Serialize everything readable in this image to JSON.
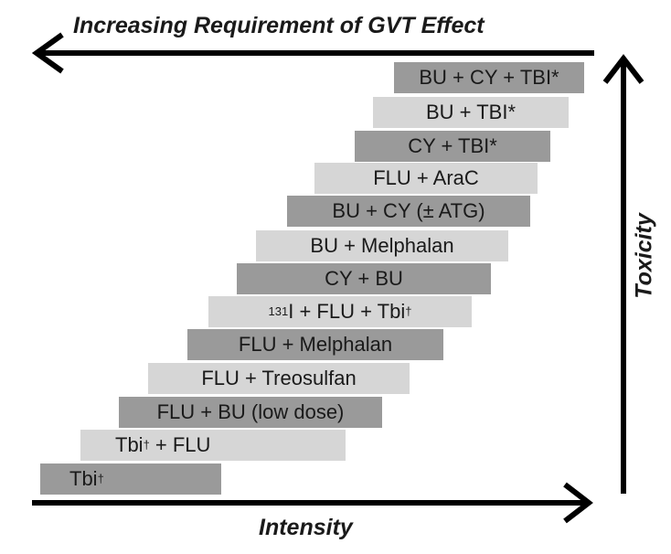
{
  "labels": {
    "top": "Increasing Requirement of GVT Effect",
    "bottom": "Intensity",
    "side": "Toxicity"
  },
  "colors": {
    "dark": "#9a9a9a",
    "light": "#d6d6d6",
    "arrow": "#000000"
  },
  "regimens": [
    {
      "text": "BU + CY + TBI*",
      "shade": "dark"
    },
    {
      "text": "BU + TBI*",
      "shade": "light"
    },
    {
      "text": "CY + TBI*",
      "shade": "dark"
    },
    {
      "text": "FLU + AraC",
      "shade": "light"
    },
    {
      "text": "BU + CY (± ATG)",
      "shade": "dark"
    },
    {
      "text": "BU + Melphalan",
      "shade": "light"
    },
    {
      "text": "CY + BU",
      "shade": "dark"
    },
    {
      "text_sup_pre": "131",
      "text": "I + FLU + Tbi",
      "text_sup": "†",
      "shade": "light"
    },
    {
      "text": "FLU + Melphalan",
      "shade": "dark"
    },
    {
      "text": "FLU + Treosulfan",
      "shade": "light"
    },
    {
      "text": "FLU + BU (low dose)",
      "shade": "dark"
    },
    {
      "text": "Tbi",
      "text_sup": "†",
      "text_post": " + FLU",
      "shade": "light"
    },
    {
      "text": "Tbi",
      "text_sup": "†",
      "shade": "dark"
    }
  ]
}
